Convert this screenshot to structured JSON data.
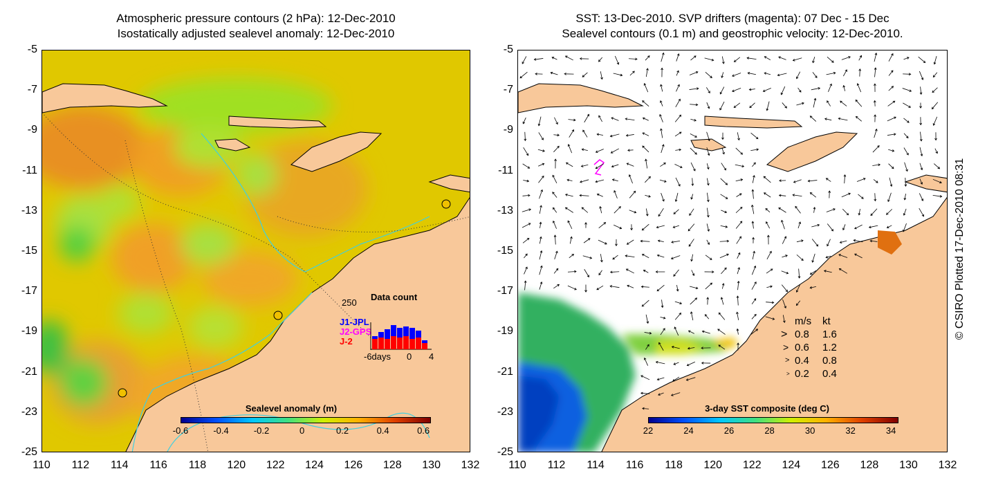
{
  "left_panel": {
    "title_line1": "Atmospheric pressure contours (2 hPa): 12-Dec-2010",
    "title_line2": "Isostatically adjusted sealevel anomaly: 12-Dec-2010",
    "colorbar": {
      "title": "Sealevel anomaly (m)",
      "ticks": [
        "-0.6",
        "-0.4",
        "-0.2",
        "0",
        "0.2",
        "0.4",
        "0.6"
      ],
      "colors": [
        "#00008f",
        "#0050ff",
        "#00c8ff",
        "#40e080",
        "#d0f000",
        "#ffb000",
        "#e04000",
        "#800000"
      ]
    },
    "data_count": {
      "title": "Data count",
      "max_label": "250",
      "series_labels": [
        "J1-JPL",
        "J2-GPS",
        "J-2"
      ],
      "series_colors": [
        "#0000ff",
        "#ff00ff",
        "#ff0000"
      ],
      "x_labels": [
        "-6days",
        "0",
        "4"
      ]
    }
  },
  "right_panel": {
    "title_line1": "SST: 13-Dec-2010. SVP drifters (magenta): 07 Dec - 15 Dec",
    "title_line2": "Sealevel contours (0.1 m) and geostrophic velocity: 12-Dec-2010.",
    "colorbar": {
      "title": "3-day SST composite (deg C)",
      "ticks": [
        "22",
        "24",
        "26",
        "28",
        "30",
        "32",
        "34"
      ],
      "colors": [
        "#00008f",
        "#0050ff",
        "#00c8ff",
        "#40e080",
        "#d0f000",
        "#ffb000",
        "#e04000",
        "#800000"
      ]
    },
    "velocity_legend": {
      "header_ms": "m/s",
      "header_kt": "kt",
      "rows": [
        {
          "ms": "0.8",
          "kt": "1.6"
        },
        {
          "ms": "0.6",
          "kt": "1.2"
        },
        {
          "ms": "0.4",
          "kt": "0.8"
        },
        {
          "ms": "0.2",
          "kt": "0.4"
        }
      ]
    }
  },
  "axes": {
    "y_labels": [
      "-5",
      "-7",
      "-9",
      "-11",
      "-13",
      "-15",
      "-17",
      "-19",
      "-21",
      "-23",
      "-25"
    ],
    "x_labels": [
      "110",
      "112",
      "114",
      "116",
      "118",
      "120",
      "122",
      "124",
      "126",
      "128",
      "130",
      "132"
    ]
  },
  "credit": "© CSIRO Plotted 17-Dec-2010 08:31",
  "colors": {
    "land": "#f8c89a",
    "ocean_anomaly_base": "#d8d000",
    "coastline": "#000000",
    "bathymetry": "#40d0e0"
  }
}
